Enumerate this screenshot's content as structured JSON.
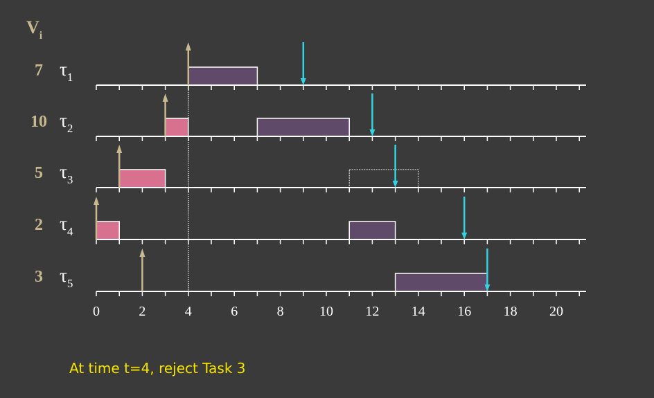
{
  "chart_data": {
    "type": "gantt",
    "header_label": {
      "main": "V",
      "sub": "i"
    },
    "x_ticks": [
      "0",
      "2",
      "4",
      "6",
      "8",
      "10",
      "12",
      "14",
      "16",
      "18",
      "20"
    ],
    "xlim": [
      0,
      21
    ],
    "colors": {
      "background": "#3a3a3a",
      "axis": "#ffffff",
      "value": "#c9b98f",
      "release_arrow": "#c9b98f",
      "deadline_arrow": "#33d3e3",
      "exec_gray": "#5f4a6a",
      "exec_pink": "#d8708f",
      "rejected_outline": "#ffffff",
      "caption": "#f5e400"
    },
    "marker_time": 4,
    "tasks": [
      {
        "value": "7",
        "name": "τ",
        "sub": "1",
        "release": 4,
        "deadline": 9,
        "segments": [
          {
            "start": 4,
            "end": 7,
            "style": "gray"
          }
        ]
      },
      {
        "value": "10",
        "name": "τ",
        "sub": "2",
        "release": 3,
        "deadline": 12,
        "segments": [
          {
            "start": 3,
            "end": 4,
            "style": "pink"
          },
          {
            "start": 7,
            "end": 11,
            "style": "gray"
          }
        ]
      },
      {
        "value": "5",
        "name": "τ",
        "sub": "3",
        "release": 1,
        "deadline": 13,
        "segments": [
          {
            "start": 1,
            "end": 3,
            "style": "pink"
          },
          {
            "start": 11,
            "end": 14,
            "style": "rejected"
          }
        ]
      },
      {
        "value": "2",
        "name": "τ",
        "sub": "4",
        "release": 0,
        "deadline": 16,
        "segments": [
          {
            "start": 0,
            "end": 1,
            "style": "pink"
          },
          {
            "start": 11,
            "end": 13,
            "style": "gray"
          }
        ]
      },
      {
        "value": "3",
        "name": "τ",
        "sub": "5",
        "release": 2,
        "deadline": 17,
        "segments": [
          {
            "start": 13,
            "end": 17,
            "style": "gray"
          }
        ]
      }
    ]
  },
  "caption": "At time t=4, reject Task 3"
}
